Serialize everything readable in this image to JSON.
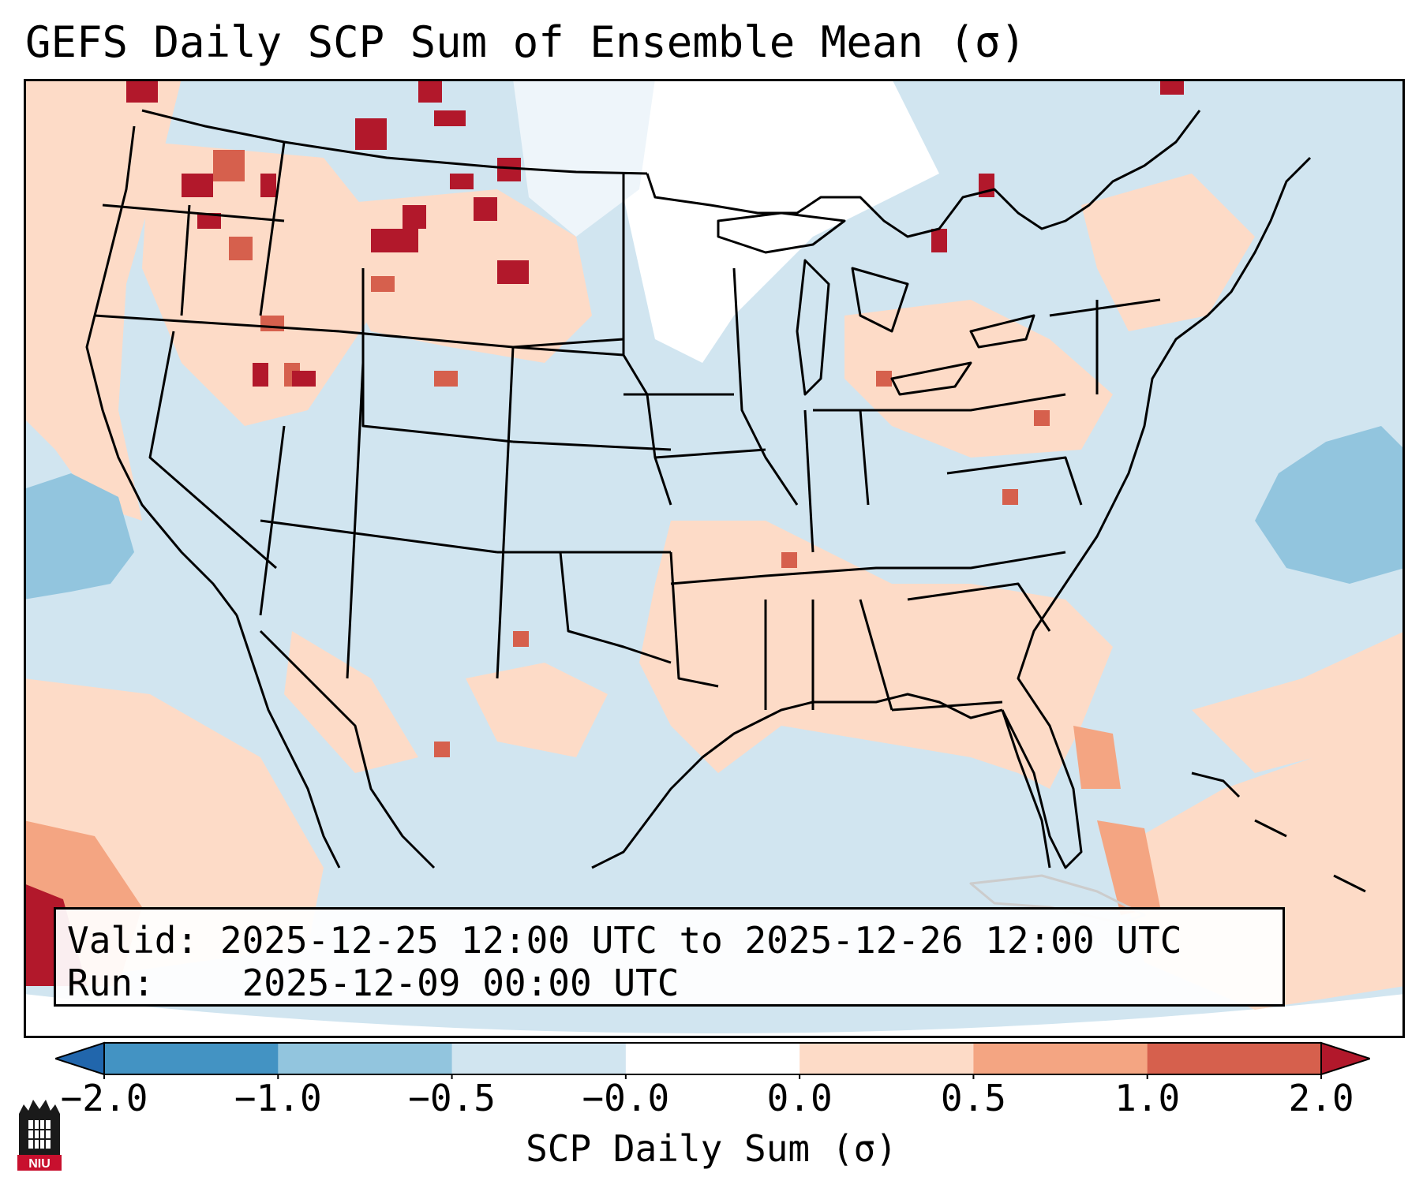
{
  "title": "GEFS Daily SCP Sum of Ensemble Mean (σ)",
  "info": {
    "valid_label": "Valid:",
    "valid_value": "2025-12-25 12:00 UTC to 2025-12-26 12:00 UTC",
    "run_label": "Run:",
    "run_value": "2025-12-09 00:00 UTC"
  },
  "colorbar": {
    "label": "SCP Daily Sum (σ)",
    "ticks": [
      "−2.0",
      "−1.0",
      "−0.5",
      "−0.0",
      "0.0",
      "0.5",
      "1.0",
      "2.0"
    ],
    "bins": [
      {
        "range": "< -2.0",
        "color": "#2166ac"
      },
      {
        "range": "-2.0 to -1.0",
        "color": "#4393c3"
      },
      {
        "range": "-1.0 to -0.5",
        "color": "#92c5de"
      },
      {
        "range": "-0.5 to -0.0",
        "color": "#d1e5f0"
      },
      {
        "range": "-0.0 to 0.0",
        "color": "#ffffff"
      },
      {
        "range": "0.0 to 0.5",
        "color": "#fddbc7"
      },
      {
        "range": "0.5 to 1.0",
        "color": "#f4a582"
      },
      {
        "range": "1.0 to 2.0",
        "color": "#d6604d"
      },
      {
        "range": "> 2.0",
        "color": "#b2182b"
      }
    ]
  },
  "logo_text": "NIU",
  "icons": {
    "logo": "niu-tower-logo-icon"
  }
}
